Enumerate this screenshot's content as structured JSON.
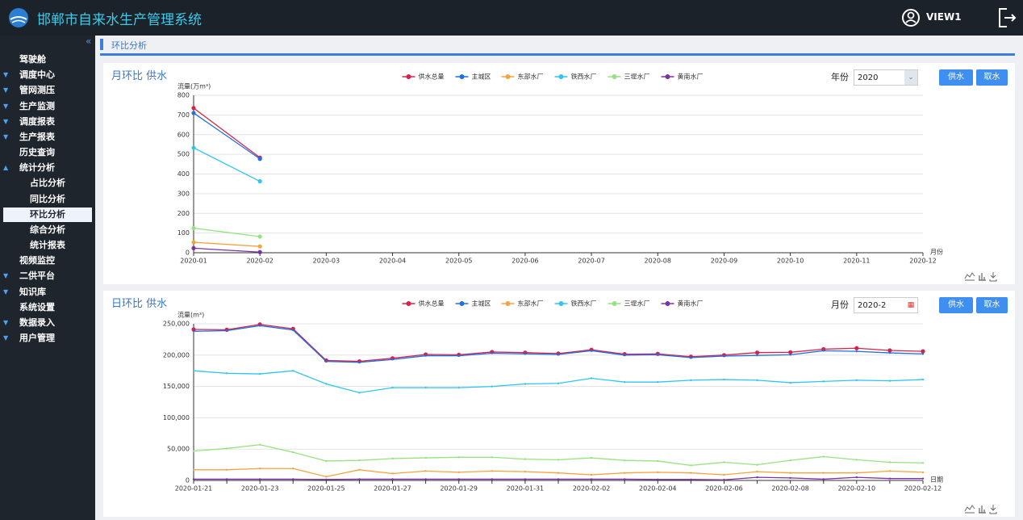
{
  "header": {
    "title": "邯郸市自来水生产管理系统",
    "user": "VIEW1"
  },
  "sidebar": {
    "items": [
      {
        "label": "驾驶舱"
      },
      {
        "label": "调度中心",
        "arrow": "down"
      },
      {
        "label": "管网测压",
        "arrow": "down"
      },
      {
        "label": "生产监测",
        "arrow": "down"
      },
      {
        "label": "调度报表",
        "arrow": "down"
      },
      {
        "label": "生产报表",
        "arrow": "down"
      },
      {
        "label": "历史查询"
      },
      {
        "label": "统计分析",
        "arrow": "up",
        "children": [
          {
            "label": "占比分析"
          },
          {
            "label": "同比分析"
          },
          {
            "label": "环比分析",
            "selected": true
          },
          {
            "label": "综合分析"
          },
          {
            "label": "统计报表"
          }
        ]
      },
      {
        "label": "视频监控"
      },
      {
        "label": "二供平台",
        "arrow": "down"
      },
      {
        "label": "知识库",
        "arrow": "down"
      },
      {
        "label": "系统设置"
      },
      {
        "label": "数据录入",
        "arrow": "down"
      },
      {
        "label": "用户管理",
        "arrow": "down"
      }
    ]
  },
  "breadcrumb": "环比分析",
  "chart_data": [
    {
      "type": "line",
      "title": "月环比 供水",
      "y_label": "流量(万m³)",
      "x_label": "月份",
      "controls": {
        "label": "年份",
        "value": "2020",
        "buttons": [
          "供水",
          "取水"
        ]
      },
      "categories": [
        "2020-01",
        "2020-02",
        "2020-03",
        "2020-04",
        "2020-05",
        "2020-06",
        "2020-07",
        "2020-08",
        "2020-09",
        "2020-10",
        "2020-11",
        "2020-12"
      ],
      "ylim": [
        0,
        800
      ],
      "yticks": [
        0,
        100,
        200,
        300,
        400,
        500,
        600,
        700,
        800
      ],
      "grid": true,
      "series": [
        {
          "name": "供水总量",
          "color": "#d4234a",
          "values": [
            735,
            483,
            null,
            null,
            null,
            null,
            null,
            null,
            null,
            null,
            null,
            null
          ]
        },
        {
          "name": "主城区",
          "color": "#1f6fe5",
          "values": [
            710,
            477,
            null,
            null,
            null,
            null,
            null,
            null,
            null,
            null,
            null,
            null
          ]
        },
        {
          "name": "东部水厂",
          "color": "#f7a33d",
          "values": [
            53,
            32,
            null,
            null,
            null,
            null,
            null,
            null,
            null,
            null,
            null,
            null
          ]
        },
        {
          "name": "铁西水厂",
          "color": "#2ec6ef",
          "values": [
            533,
            363,
            null,
            null,
            null,
            null,
            null,
            null,
            null,
            null,
            null,
            null
          ]
        },
        {
          "name": "三堤水厂",
          "color": "#94e37f",
          "values": [
            125,
            82,
            null,
            null,
            null,
            null,
            null,
            null,
            null,
            null,
            null,
            null
          ]
        },
        {
          "name": "黄南水厂",
          "color": "#7a33a6",
          "values": [
            23,
            3,
            null,
            null,
            null,
            null,
            null,
            null,
            null,
            null,
            null,
            null
          ]
        }
      ]
    },
    {
      "type": "line",
      "title": "日环比 供水",
      "y_label": "流量(m³)",
      "x_label": "日期",
      "controls": {
        "label": "月份",
        "value": "2020-2",
        "buttons": [
          "供水",
          "取水"
        ]
      },
      "categories": [
        "2020-01-21",
        null,
        "2020-01-23",
        null,
        "2020-01-25",
        null,
        "2020-01-27",
        null,
        "2020-01-29",
        null,
        "2020-01-31",
        null,
        "2020-02-02",
        null,
        "2020-02-04",
        null,
        "2020-02-06",
        null,
        "2020-02-08",
        null,
        "2020-02-10",
        null,
        "2020-02-12"
      ],
      "ylim": [
        0,
        250000
      ],
      "yticks": [
        0,
        {
          "value": 50000,
          "label": "50,000"
        },
        {
          "value": 100000,
          "label": "100,000"
        },
        {
          "value": 150000,
          "label": "150,000"
        },
        {
          "value": 200000,
          "label": "200,000"
        },
        {
          "value": 250000,
          "label": "250,000"
        }
      ],
      "grid": true,
      "series": [
        {
          "name": "供水总量",
          "color": "#d4234a",
          "values": [
            241000,
            240500,
            249000,
            242000,
            191500,
            190000,
            195000,
            201000,
            200500,
            205000,
            204000,
            202500,
            208500,
            201500,
            202000,
            197500,
            200000,
            204000,
            204500,
            209500,
            211000,
            207500,
            206000
          ]
        },
        {
          "name": "主城区",
          "color": "#1f6fe5",
          "values": [
            238000,
            239000,
            247000,
            240000,
            190000,
            188500,
            193000,
            199000,
            199000,
            203000,
            202000,
            201000,
            207000,
            200000,
            200500,
            196000,
            198500,
            199500,
            200500,
            207000,
            206000,
            203500,
            202000
          ]
        },
        {
          "name": "东部水厂",
          "color": "#f7a33d",
          "values": [
            17000,
            17000,
            19000,
            19000,
            6000,
            17000,
            11000,
            15000,
            13000,
            15000,
            14000,
            12000,
            9000,
            12000,
            13000,
            12000,
            9000,
            14000,
            12000,
            12000,
            12000,
            15000,
            13000
          ]
        },
        {
          "name": "铁西水厂",
          "color": "#2ec6ef",
          "values": [
            175000,
            171000,
            170000,
            175000,
            154000,
            140000,
            148000,
            148000,
            148000,
            150000,
            154000,
            155000,
            163000,
            157000,
            157000,
            160000,
            161000,
            160000,
            156000,
            158000,
            160000,
            159000,
            161000
          ]
        },
        {
          "name": "三堤水厂",
          "color": "#94e37f",
          "values": [
            47000,
            51000,
            57000,
            45000,
            31000,
            32000,
            35000,
            36000,
            37000,
            37000,
            34000,
            33000,
            36000,
            32000,
            31000,
            24000,
            29000,
            25000,
            32000,
            38000,
            33000,
            29000,
            28000
          ]
        },
        {
          "name": "黄南水厂",
          "color": "#7a33a6",
          "values": [
            2000,
            2000,
            2000,
            2000,
            1500,
            2000,
            2000,
            2000,
            2000,
            2000,
            2000,
            2000,
            2000,
            2000,
            1500,
            1500,
            1000,
            5000,
            4000,
            2000,
            5000,
            3000,
            3000
          ]
        }
      ]
    }
  ]
}
